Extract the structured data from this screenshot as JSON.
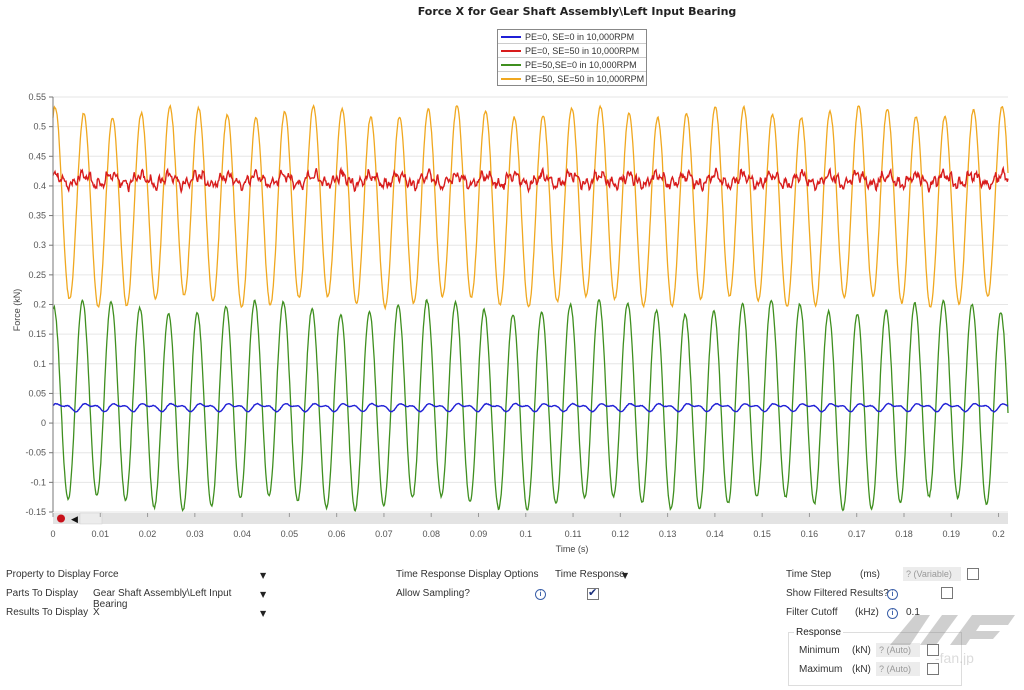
{
  "chart_data": {
    "type": "line",
    "title": "Force  X for Gear Shaft Assembly\\Left Input Bearing",
    "xlabel": "Time (s)",
    "ylabel": "Force (kN)",
    "xlim": [
      0,
      0.202
    ],
    "ylim": [
      -0.15,
      0.55
    ],
    "x_ticks": [
      "0",
      "0.01",
      "0.02",
      "0.03",
      "0.04",
      "0.05",
      "0.06",
      "0.07",
      "0.08",
      "0.09",
      "0.1",
      "0.11",
      "0.12",
      "0.13",
      "0.14",
      "0.15",
      "0.16",
      "0.17",
      "0.18",
      "0.19",
      "0.2"
    ],
    "y_ticks": [
      "-0.15",
      "-0.1",
      "-0.05",
      "0",
      "0.05",
      "0.1",
      "0.15",
      "0.2",
      "0.25",
      "0.3",
      "0.35",
      "0.4",
      "0.45",
      "0.5",
      "0.55"
    ],
    "grid": true,
    "legend_position": "top-center",
    "period_s": 0.00607,
    "series": [
      {
        "name": "PE=0, SE=0 in 10,000RPM",
        "color": "#1f1fd6",
        "mean": 0.027,
        "amplitude": 0.008,
        "min": 0.019,
        "max": 0.035,
        "noise": 0.001
      },
      {
        "name": "PE=0, SE=50 in 10,000RPM",
        "color": "#d81c1c",
        "mean": 0.41,
        "amplitude": 0.008,
        "min": 0.39,
        "max": 0.43,
        "noise": 0.008
      },
      {
        "name": "PE=50,SE=0 in 10,000RPM",
        "color": "#3f8f1f",
        "mean": 0.03,
        "amplitude": 0.165,
        "min": -0.14,
        "max": 0.195,
        "noise": 0.004
      },
      {
        "name": "PE=50, SE=50 in 10,000RPM",
        "color": "#f0a820",
        "mean": 0.365,
        "amplitude": 0.16,
        "min": 0.2,
        "max": 0.53,
        "noise": 0.004
      }
    ]
  },
  "controls": {
    "property_label": "Property to Display",
    "property_value": "Force",
    "parts_label": "Parts To Display",
    "parts_value": "Gear Shaft Assembly\\Left Input Bearing",
    "results_label": "Results To Display",
    "results_value": "X",
    "time_response_label": "Time Response Display Options",
    "time_response_value": "Time Response",
    "allow_sampling_label": "Allow Sampling?",
    "allow_sampling_checked": true,
    "time_step_label": "Time Step",
    "time_step_unit": "(ms)",
    "time_step_value": "? (Variable)",
    "show_filtered_label": "Show Filtered Results?",
    "filter_cutoff_label": "Filter Cutoff",
    "filter_cutoff_unit": "(kHz)",
    "filter_cutoff_value": "0.1",
    "response_group_label": "Response",
    "minimum_label": "Minimum",
    "minimum_unit": "(kN)",
    "minimum_value": "? (Auto)",
    "maximum_label": "Maximum",
    "maximum_unit": "(kN)",
    "maximum_value": "? (Auto)",
    "dropdown_arrow": "▼",
    "checkmark": "✔",
    "info_glyph": "i",
    "play_back_glyph": "◀"
  },
  "watermark": {
    "text": "-fan.jp"
  }
}
